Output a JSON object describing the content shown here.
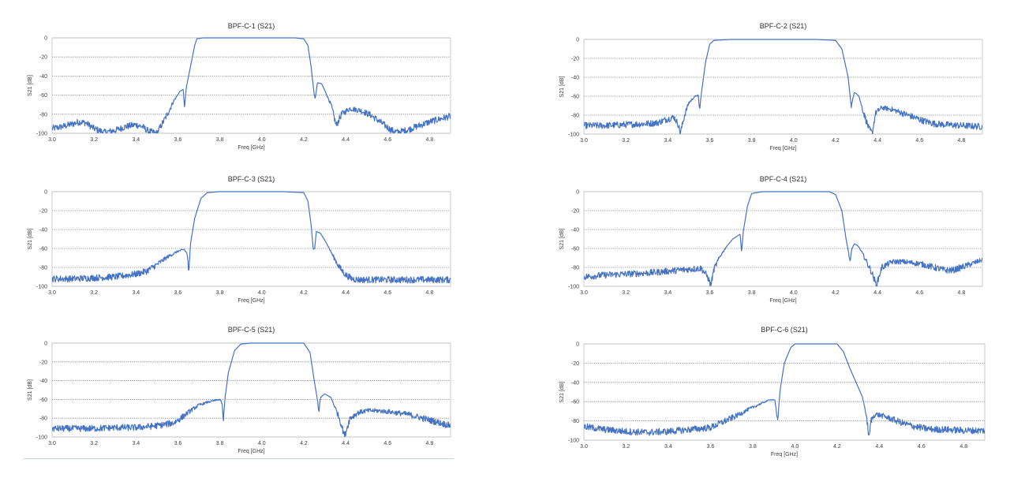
{
  "chart_data": [
    {
      "type": "line",
      "title": "BPF-C-1 (S21)",
      "xlabel": "Freq [GHz]",
      "ylabel": "S21 [dB]",
      "xlim": [
        3.0,
        4.9
      ],
      "ylim": [
        -100,
        0
      ],
      "xticks": [
        3.0,
        3.2,
        3.4,
        3.6,
        3.8,
        4.0,
        4.2,
        4.4,
        4.6,
        4.8
      ],
      "yticks": [
        0,
        -20,
        -40,
        -60,
        -80,
        -100
      ],
      "grid": "horizontal dotted",
      "line_color": "#4472c4",
      "series": [
        {
          "x": [
            3.0,
            3.05,
            3.1,
            3.13,
            3.16,
            3.2,
            3.25,
            3.3,
            3.35,
            3.4,
            3.43,
            3.46,
            3.5,
            3.52,
            3.55,
            3.58,
            3.61,
            3.625,
            3.632,
            3.64,
            3.66,
            3.68,
            3.69,
            3.72,
            3.8,
            3.9,
            4.0,
            4.1,
            4.16,
            4.2,
            4.22,
            4.235,
            4.25,
            4.255,
            4.265,
            4.285,
            4.3,
            4.33,
            4.355,
            4.38,
            4.42,
            4.47,
            4.52,
            4.57,
            4.62,
            4.65,
            4.7,
            4.75,
            4.8,
            4.85,
            4.9
          ],
          "y": [
            -95,
            -93,
            -90,
            -88,
            -89,
            -95,
            -99,
            -97,
            -93,
            -91,
            -93,
            -98,
            -100,
            -92,
            -80,
            -66,
            -56,
            -54,
            -73,
            -52,
            -30,
            -8,
            -1,
            0,
            0,
            0,
            0,
            0,
            0,
            -1,
            -8,
            -30,
            -60,
            -64,
            -47,
            -48,
            -55,
            -70,
            -92,
            -80,
            -74,
            -76,
            -81,
            -89,
            -97,
            -99,
            -96,
            -92,
            -88,
            -85,
            -82
          ]
        }
      ]
    },
    {
      "type": "line",
      "title": "BPF-C-2 (S21)",
      "xlabel": "Freq [GHz]",
      "ylabel": "S21 [dB]",
      "xlim": [
        3.0,
        4.9
      ],
      "ylim": [
        -100,
        0
      ],
      "xticks": [
        3.0,
        3.2,
        3.4,
        3.6,
        3.8,
        4.0,
        4.2,
        4.4,
        4.6,
        4.8
      ],
      "yticks": [
        0,
        -20,
        -40,
        -60,
        -80,
        -100
      ],
      "grid": "horizontal dotted",
      "line_color": "#4472c4",
      "series": [
        {
          "x": [
            3.0,
            3.1,
            3.2,
            3.3,
            3.35,
            3.4,
            3.43,
            3.45,
            3.46,
            3.48,
            3.5,
            3.53,
            3.545,
            3.552,
            3.56,
            3.58,
            3.6,
            3.62,
            3.7,
            3.8,
            3.9,
            4.0,
            4.1,
            4.2,
            4.23,
            4.26,
            4.275,
            4.282,
            4.29,
            4.31,
            4.33,
            4.36,
            4.375,
            4.39,
            4.42,
            4.47,
            4.52,
            4.57,
            4.62,
            4.67,
            4.72,
            4.8,
            4.9
          ],
          "y": [
            -91,
            -91,
            -90,
            -89,
            -88,
            -84,
            -82,
            -90,
            -99,
            -80,
            -67,
            -60,
            -59,
            -75,
            -57,
            -24,
            -5,
            -1,
            0,
            0,
            0,
            0,
            0,
            -1,
            -10,
            -40,
            -72,
            -62,
            -56,
            -59,
            -75,
            -95,
            -99,
            -78,
            -72,
            -74,
            -78,
            -82,
            -86,
            -89,
            -90,
            -91,
            -92
          ]
        }
      ]
    },
    {
      "type": "line",
      "title": "BPF-C-3 (S21)",
      "xlabel": "Freq [GHz]",
      "ylabel": "S21 [dB]",
      "xlim": [
        3.0,
        4.9
      ],
      "ylim": [
        -100,
        0
      ],
      "xticks": [
        3.0,
        3.2,
        3.4,
        3.6,
        3.8,
        4.0,
        4.2,
        4.4,
        4.6,
        4.8
      ],
      "yticks": [
        0,
        -20,
        -40,
        -60,
        -80,
        -100
      ],
      "grid": "horizontal dotted",
      "line_color": "#4472c4",
      "series": [
        {
          "x": [
            3.0,
            3.1,
            3.2,
            3.3,
            3.4,
            3.45,
            3.5,
            3.55,
            3.6,
            3.63,
            3.645,
            3.652,
            3.66,
            3.68,
            3.71,
            3.74,
            3.8,
            3.9,
            4.0,
            4.1,
            4.2,
            4.22,
            4.235,
            4.245,
            4.252,
            4.26,
            4.28,
            4.31,
            4.34,
            4.37,
            4.4,
            4.43,
            4.46,
            4.5,
            4.6,
            4.7,
            4.8,
            4.9
          ],
          "y": [
            -92,
            -92,
            -91,
            -90,
            -87,
            -84,
            -77,
            -69,
            -63,
            -61,
            -66,
            -87,
            -55,
            -28,
            -7,
            -1,
            0,
            0,
            0,
            0,
            -1,
            -10,
            -35,
            -60,
            -60,
            -42,
            -44,
            -55,
            -68,
            -80,
            -88,
            -92,
            -93,
            -93,
            -93,
            -93,
            -93,
            -93
          ]
        }
      ]
    },
    {
      "type": "line",
      "title": "BPF-C-4 (S21)",
      "xlabel": "Freq [GHz]",
      "ylabel": "S21 [dB]",
      "xlim": [
        3.0,
        4.9
      ],
      "ylim": [
        -100,
        0
      ],
      "xticks": [
        3.0,
        3.2,
        3.4,
        3.6,
        3.8,
        4.0,
        4.2,
        4.4,
        4.6,
        4.8
      ],
      "yticks": [
        0,
        -20,
        -40,
        -60,
        -80,
        -100
      ],
      "grid": "horizontal dotted",
      "line_color": "#4472c4",
      "series": [
        {
          "x": [
            3.0,
            3.1,
            3.2,
            3.3,
            3.4,
            3.5,
            3.56,
            3.59,
            3.605,
            3.62,
            3.65,
            3.68,
            3.71,
            3.73,
            3.745,
            3.752,
            3.76,
            3.78,
            3.8,
            3.85,
            3.9,
            4.0,
            4.1,
            4.17,
            4.2,
            4.23,
            4.25,
            4.27,
            4.278,
            4.29,
            4.31,
            4.33,
            4.37,
            4.395,
            4.42,
            4.47,
            4.52,
            4.6,
            4.67,
            4.72,
            4.76,
            4.8,
            4.85,
            4.9
          ],
          "y": [
            -90,
            -88,
            -87,
            -86,
            -84,
            -82,
            -81,
            -90,
            -99,
            -82,
            -68,
            -58,
            -50,
            -47,
            -45,
            -64,
            -42,
            -15,
            -2,
            0,
            0,
            0,
            0,
            0,
            -3,
            -20,
            -50,
            -74,
            -60,
            -55,
            -58,
            -66,
            -84,
            -99,
            -80,
            -74,
            -74,
            -76,
            -80,
            -83,
            -83,
            -80,
            -76,
            -72
          ]
        }
      ]
    },
    {
      "type": "line",
      "title": "BPF-C-5 (S21)",
      "xlabel": "Freq [GHz]",
      "ylabel": "S21 [dB]",
      "xlim": [
        3.0,
        4.9
      ],
      "ylim": [
        -100,
        0
      ],
      "xticks": [
        3.0,
        3.2,
        3.4,
        3.6,
        3.8,
        4.0,
        4.2,
        4.4,
        4.6,
        4.8
      ],
      "yticks": [
        0,
        -20,
        -40,
        -60,
        -80,
        -100
      ],
      "grid": "horizontal dotted",
      "line_color": "#4472c4",
      "series": [
        {
          "x": [
            3.0,
            3.1,
            3.2,
            3.3,
            3.4,
            3.5,
            3.58,
            3.62,
            3.66,
            3.7,
            3.74,
            3.78,
            3.8,
            3.81,
            3.817,
            3.825,
            3.84,
            3.87,
            3.9,
            3.95,
            4.0,
            4.1,
            4.2,
            4.23,
            4.25,
            4.265,
            4.272,
            4.28,
            4.3,
            4.33,
            4.37,
            4.395,
            4.42,
            4.46,
            4.5,
            4.55,
            4.6,
            4.7,
            4.8,
            4.9
          ],
          "y": [
            -91,
            -91,
            -91,
            -90,
            -90,
            -88,
            -85,
            -79,
            -72,
            -66,
            -63,
            -61,
            -60,
            -64,
            -82,
            -58,
            -32,
            -8,
            -1,
            0,
            0,
            0,
            0,
            -10,
            -40,
            -60,
            -73,
            -58,
            -54,
            -58,
            -80,
            -99,
            -80,
            -74,
            -72,
            -72,
            -73,
            -76,
            -82,
            -88
          ]
        }
      ]
    },
    {
      "type": "line",
      "title": "BPF-C-6 (S21)",
      "xlabel": "Freq [GHz]",
      "ylabel": "S21 [dB]",
      "xlim": [
        3.0,
        4.9
      ],
      "ylim": [
        -100,
        0
      ],
      "xticks": [
        3.0,
        3.2,
        3.4,
        3.6,
        3.8,
        4.0,
        4.2,
        4.4,
        4.6,
        4.8
      ],
      "yticks": [
        0,
        -20,
        -40,
        -60,
        -80,
        -100
      ],
      "grid": "horizontal dotted",
      "line_color": "#4472c4",
      "series": [
        {
          "x": [
            3.0,
            3.1,
            3.2,
            3.3,
            3.4,
            3.5,
            3.6,
            3.66,
            3.72,
            3.78,
            3.84,
            3.88,
            3.905,
            3.918,
            3.925,
            3.93,
            3.95,
            3.98,
            4.0,
            4.05,
            4.1,
            4.15,
            4.2,
            4.23,
            4.26,
            4.29,
            4.32,
            4.335,
            4.345,
            4.352,
            4.36,
            4.38,
            4.42,
            4.47,
            4.52,
            4.57,
            4.62,
            4.67,
            4.72,
            4.8,
            4.9
          ],
          "y": [
            -86,
            -89,
            -91,
            -92,
            -91,
            -89,
            -87,
            -81,
            -75,
            -68,
            -62,
            -58,
            -58,
            -82,
            -62,
            -48,
            -20,
            -4,
            0,
            0,
            0,
            0,
            0,
            -8,
            -25,
            -40,
            -55,
            -70,
            -85,
            -99,
            -80,
            -73,
            -75,
            -79,
            -83,
            -86,
            -88,
            -89,
            -89,
            -90,
            -90
          ]
        }
      ]
    }
  ]
}
